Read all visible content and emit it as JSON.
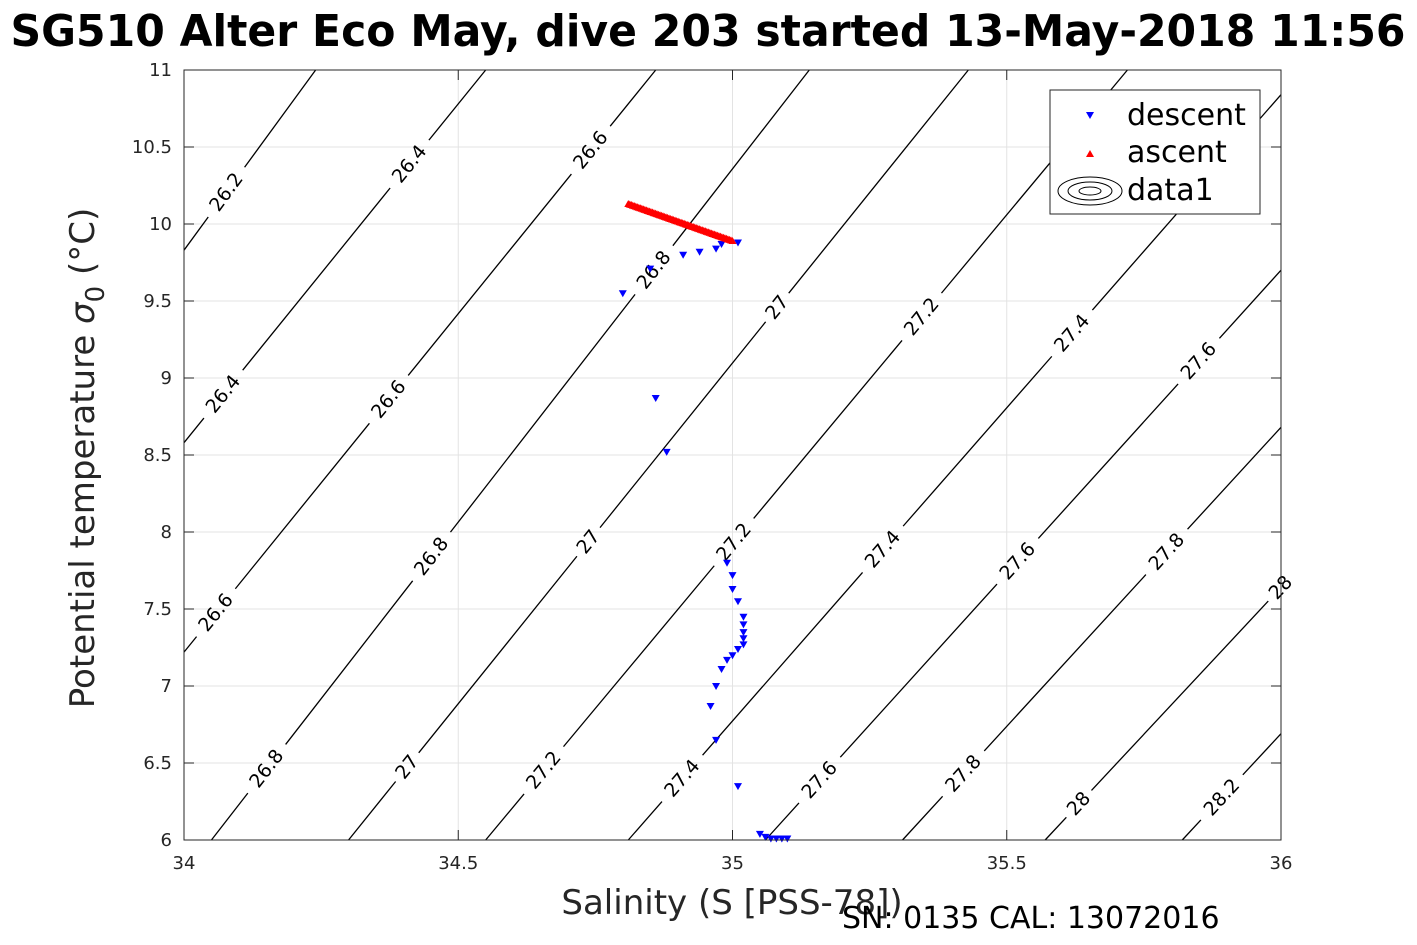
{
  "title": "SG510 Alter Eco May, dive 203 started 13-May-2018 11:56",
  "footer": "SN: 0135  CAL: 13072016",
  "chart_data": {
    "type": "scatter",
    "xlabel": "Salinity (S [PSS-78])",
    "ylabel_text": "Potential temperature ",
    "ylabel_symbol": "σ",
    "ylabel_sub": "0",
    "ylabel_unit": " (°C)",
    "xlim": [
      34,
      36
    ],
    "ylim": [
      6,
      11
    ],
    "xticks": [
      "34",
      "34.5",
      "35",
      "35.5",
      "36"
    ],
    "yticks": [
      "6",
      "6.5",
      "7",
      "7.5",
      "8",
      "8.5",
      "9",
      "9.5",
      "10",
      "10.5",
      "11"
    ],
    "grid": true,
    "legend_position": "top-right",
    "legend": [
      "descent",
      "ascent",
      "data1"
    ],
    "contour_levels": [
      "26.2",
      "26.4",
      "26.6",
      "26.8",
      "27",
      "27.2",
      "27.4",
      "27.6",
      "27.8",
      "28",
      "28.2"
    ],
    "series": [
      {
        "name": "descent",
        "marker": "triangle-down",
        "color": "#0000ff",
        "points": [
          [
            34.8,
            9.55
          ],
          [
            34.85,
            9.71
          ],
          [
            34.91,
            9.8
          ],
          [
            34.94,
            9.82
          ],
          [
            34.97,
            9.84
          ],
          [
            34.98,
            9.87
          ],
          [
            35.01,
            9.88
          ],
          [
            34.86,
            8.87
          ],
          [
            34.88,
            8.52
          ],
          [
            34.99,
            7.8
          ],
          [
            35.0,
            7.72
          ],
          [
            35.0,
            7.63
          ],
          [
            35.01,
            7.55
          ],
          [
            35.02,
            7.45
          ],
          [
            35.02,
            7.4
          ],
          [
            35.02,
            7.35
          ],
          [
            35.02,
            7.31
          ],
          [
            35.02,
            7.27
          ],
          [
            35.01,
            7.24
          ],
          [
            35.0,
            7.2
          ],
          [
            34.99,
            7.17
          ],
          [
            34.98,
            7.11
          ],
          [
            34.97,
            7.0
          ],
          [
            34.96,
            6.87
          ],
          [
            34.97,
            6.65
          ],
          [
            35.01,
            6.35
          ],
          [
            35.05,
            6.04
          ],
          [
            35.06,
            6.02
          ],
          [
            35.07,
            6.01
          ],
          [
            35.08,
            6.01
          ],
          [
            35.09,
            6.01
          ],
          [
            35.1,
            6.01
          ]
        ]
      },
      {
        "name": "ascent",
        "marker": "triangle-up",
        "color": "#ff0000",
        "line": {
          "x_start": 34.81,
          "y_start": 10.13,
          "x_end": 35.0,
          "y_end": 9.89,
          "count": 70
        }
      }
    ],
    "contours": [
      {
        "label": "26.2",
        "p1": [
          34.0,
          9.83
        ],
        "p2": [
          34.24,
          11.0
        ],
        "labels": [
          [
            34.08,
            10.2
          ]
        ]
      },
      {
        "label": "26.4",
        "p1": [
          34.0,
          8.58
        ],
        "p2": [
          34.55,
          11.0
        ],
        "labels": [
          [
            34.39,
            10.45
          ],
          [
            34.07,
            8.9
          ]
        ]
      },
      {
        "label": "26.6",
        "p1": [
          34.0,
          7.22
        ],
        "p2": [
          34.86,
          11.0
        ],
        "labels": [
          [
            34.7,
            10.6
          ],
          [
            34.36,
            8.9
          ],
          [
            34.05,
            7.5
          ]
        ]
      },
      {
        "label": "26.8",
        "p1": [
          34.05,
          6.0
        ],
        "p2": [
          35.14,
          11.0
        ],
        "labels": [
          [
            34.85,
            9.72
          ],
          [
            34.43,
            7.9
          ],
          [
            34.13,
            6.52
          ]
        ]
      },
      {
        "label": "27",
        "p1": [
          34.3,
          6.0
        ],
        "p2": [
          35.43,
          11.0
        ],
        "labels": [
          [
            34.99,
            9.72
          ],
          [
            34.68,
            8.1
          ],
          [
            34.38,
            6.55
          ]
        ]
      },
      {
        "label": "27.2",
        "p1": [
          34.55,
          6.0
        ],
        "p2": [
          35.72,
          11.0
        ],
        "labels": [
          [
            35.26,
            9.65
          ],
          [
            34.93,
            8.15
          ],
          [
            34.64,
            6.5
          ]
        ]
      },
      {
        "label": "27.4",
        "p1": [
          34.81,
          6.0
        ],
        "p2": [
          36.0,
          10.84
        ],
        "labels": [
          [
            35.52,
            9.6
          ],
          [
            35.19,
            8.15
          ],
          [
            34.87,
            6.52
          ]
        ]
      },
      {
        "label": "27.6",
        "p1": [
          35.06,
          6.0
        ],
        "p2": [
          36.0,
          9.7
        ],
        "labels": [
          [
            35.76,
            9.4
          ],
          [
            35.43,
            8.1
          ],
          [
            35.14,
            6.45
          ]
        ]
      },
      {
        "label": "27.8",
        "p1": [
          35.31,
          6.0
        ],
        "p2": [
          36.0,
          8.68
        ],
        "labels": [
          [
            35.7,
            8.17
          ],
          [
            35.4,
            6.5
          ]
        ]
      },
      {
        "label": "28",
        "p1": [
          35.57,
          6.0
        ],
        "p2": [
          36.0,
          7.64
        ],
        "labels": [
          [
            35.9,
            7.97
          ],
          [
            35.63,
            6.24
          ]
        ]
      },
      {
        "label": "28.2",
        "p1": [
          35.82,
          6.0
        ],
        "p2": [
          36.0,
          6.69
        ],
        "labels": [
          [
            35.87,
            6.35
          ]
        ]
      }
    ]
  }
}
